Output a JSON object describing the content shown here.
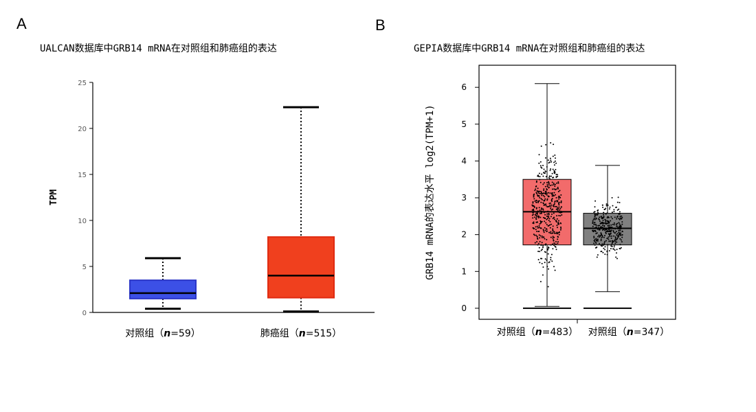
{
  "panels": {
    "a": {
      "letter": "A",
      "title": "UALCAN数据库中GRB14 mRNA在对照组和肺癌组的表达"
    },
    "b": {
      "letter": "B",
      "title": "GEPIA数据库中GRB14 mRNA在对照组和肺癌组的表达"
    }
  },
  "chart_data": [
    {
      "type": "box",
      "title": "UALCAN数据库中GRB14 mRNA在对照组和肺癌组的表达",
      "ylabel": "TPM",
      "ylim": [
        0,
        25
      ],
      "yticks": [
        0,
        5,
        10,
        15,
        20,
        25
      ],
      "grid": false,
      "categories": [
        {
          "label_main": "对照组（",
          "label_n": "n",
          "label_rest": "=59）"
        },
        {
          "label_main": "肺癌组（",
          "label_n": "n",
          "label_rest": "=515）"
        }
      ],
      "boxes": [
        {
          "min": 0.4,
          "q1": 1.5,
          "median": 2.1,
          "q3": 3.5,
          "max": 5.9,
          "color": "#3c50e6",
          "edge": "#2b36c8"
        },
        {
          "min": 0.1,
          "q1": 1.6,
          "median": 4.0,
          "q3": 8.2,
          "max": 22.3,
          "color": "#f0401e",
          "edge": "#e02a10"
        }
      ]
    },
    {
      "type": "box",
      "title": "GEPIA数据库中GRB14 mRNA在对照组和肺癌组的表达",
      "ylabel": "GRB14 mRNA的表达水平 log2(TPM+1)",
      "ylim": [
        -0.3,
        6.6
      ],
      "yticks": [
        0,
        1,
        2,
        3,
        4,
        5,
        6
      ],
      "grid": false,
      "categories": [
        {
          "label_main": "对照组（",
          "label_n": "n",
          "label_rest": "=483）"
        },
        {
          "label_main": "对照组（",
          "label_n": "n",
          "label_rest": "=347）"
        }
      ],
      "boxes": [
        {
          "min": 0.05,
          "q1": 1.72,
          "median": 2.62,
          "q3": 3.5,
          "max": 6.1,
          "color": "#f26b6b",
          "edge": "#000000"
        },
        {
          "min": 0.45,
          "q1": 1.72,
          "median": 2.17,
          "q3": 2.58,
          "max": 3.88,
          "color": "#808080",
          "edge": "#000000"
        }
      ]
    }
  ]
}
